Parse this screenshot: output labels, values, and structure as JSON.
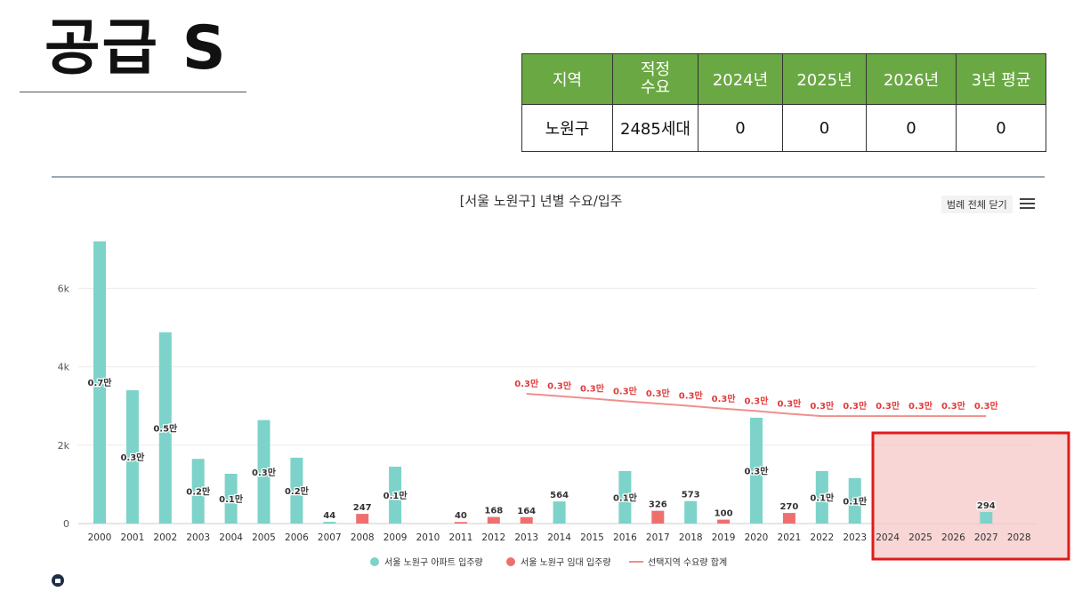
{
  "heading": "공급 S",
  "table": {
    "headers": [
      "지역",
      "적정\n수요",
      "2024년",
      "2025년",
      "2026년",
      "3년 평균"
    ],
    "row": [
      "노원구",
      "2485세대",
      "0",
      "0",
      "0",
      "0"
    ]
  },
  "legend_toggle": "범례 전체 닫기",
  "colors": {
    "header_green": "#6aa843",
    "sale_bar": "#7dd3c9",
    "rental_bar": "#ef6f6f",
    "demand_line": "#f0908c",
    "highlight": "#e01b1b"
  },
  "chart_data": {
    "type": "bar",
    "title": "[서울 노원구] 년별 수요/입주",
    "x": [
      "2000",
      "2001",
      "2002",
      "2003",
      "2004",
      "2005",
      "2006",
      "2007",
      "2008",
      "2009",
      "2010",
      "2011",
      "2012",
      "2013",
      "2014",
      "2015",
      "2016",
      "2017",
      "2018",
      "2019",
      "2020",
      "2021",
      "2022",
      "2023",
      "2024",
      "2025",
      "2026",
      "2027",
      "2028"
    ],
    "ylim": [
      0,
      7400
    ],
    "yticks": [
      {
        "v": 0,
        "label": "0"
      },
      {
        "v": 2000,
        "label": "2k"
      },
      {
        "v": 4000,
        "label": "4k"
      },
      {
        "v": 6000,
        "label": "6k"
      }
    ],
    "series": [
      {
        "name": "서울 노원구 아파트 입주량",
        "values": [
          7200,
          3400,
          4880,
          1650,
          1270,
          2640,
          1680,
          44,
          0,
          1450,
          0,
          0,
          0,
          0,
          564,
          0,
          1340,
          0,
          573,
          0,
          2700,
          0,
          1340,
          1160,
          0,
          0,
          0,
          294,
          0
        ],
        "labels": [
          "0.7만",
          "0.3만",
          "0.5만",
          "0.2만",
          "0.1만",
          "0.3만",
          "0.2만",
          "44",
          "",
          "0.1만",
          "",
          "",
          "",
          "",
          "564",
          "",
          "0.1만",
          "",
          "573",
          "",
          "0.3만",
          "",
          "0.1만",
          "0.1만",
          "",
          "",
          "",
          "294",
          ""
        ]
      },
      {
        "name": "서울 노원구 임대 입주량",
        "values": [
          0,
          0,
          0,
          0,
          0,
          0,
          0,
          0,
          247,
          0,
          0,
          40,
          168,
          164,
          0,
          0,
          0,
          326,
          0,
          100,
          0,
          270,
          0,
          0,
          0,
          0,
          0,
          0,
          0
        ],
        "labels": [
          "",
          "",
          "",
          "",
          "",
          "",
          "",
          "",
          "247",
          "",
          "",
          "40",
          "168",
          "164",
          "",
          "",
          "",
          "326",
          "",
          "100",
          "",
          "270",
          "",
          "",
          "",
          "",
          "",
          "",
          ""
        ]
      },
      {
        "name": "선택지역 수요량 합계",
        "type": "line",
        "values": [
          null,
          null,
          null,
          null,
          null,
          null,
          null,
          null,
          null,
          null,
          null,
          null,
          null,
          3310,
          3250,
          3190,
          3120,
          3060,
          3000,
          2930,
          2870,
          2800,
          2740,
          2740,
          2740,
          2740,
          2740,
          2740,
          null
        ],
        "labels": [
          "",
          "",
          "",
          "",
          "",
          "",
          "",
          "",
          "",
          "",
          "",
          "",
          "",
          "0.3만",
          "0.3만",
          "0.3만",
          "0.3만",
          "0.3만",
          "0.3만",
          "0.3만",
          "0.3만",
          "0.3만",
          "0.3만",
          "0.3만",
          "0.3만",
          "0.3만",
          "0.3만",
          "0.3만",
          ""
        ]
      }
    ]
  }
}
